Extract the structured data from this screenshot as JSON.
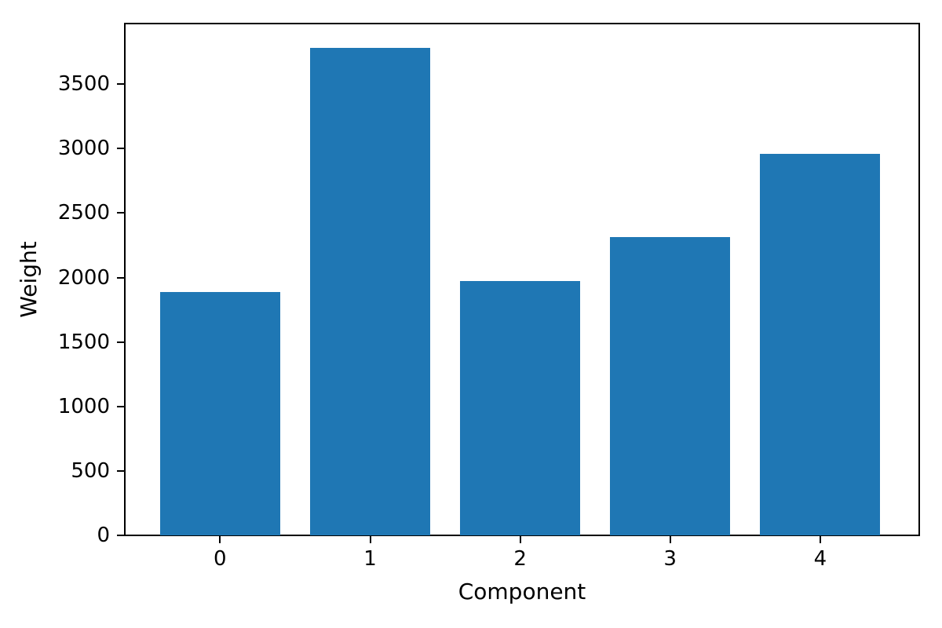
{
  "chart_data": {
    "type": "bar",
    "title": "",
    "xlabel": "Component",
    "ylabel": "Weight",
    "categories": [
      "0",
      "1",
      "2",
      "3",
      "4"
    ],
    "x": [
      0,
      1,
      2,
      3,
      4
    ],
    "values": [
      1885,
      3780,
      1975,
      2315,
      2960
    ],
    "series_name": "Weight",
    "bar_width": 0.8,
    "bar_color": "#1f77b4",
    "xlim": [
      -0.64,
      4.66
    ],
    "ylim": [
      0,
      3970
    ],
    "yticks": [
      0,
      500,
      1000,
      1500,
      2000,
      2500,
      3000,
      3500
    ],
    "grid": false,
    "legend": null,
    "background_color": "#ffffff",
    "spine_color": "#000000",
    "text_color": "#000000"
  }
}
